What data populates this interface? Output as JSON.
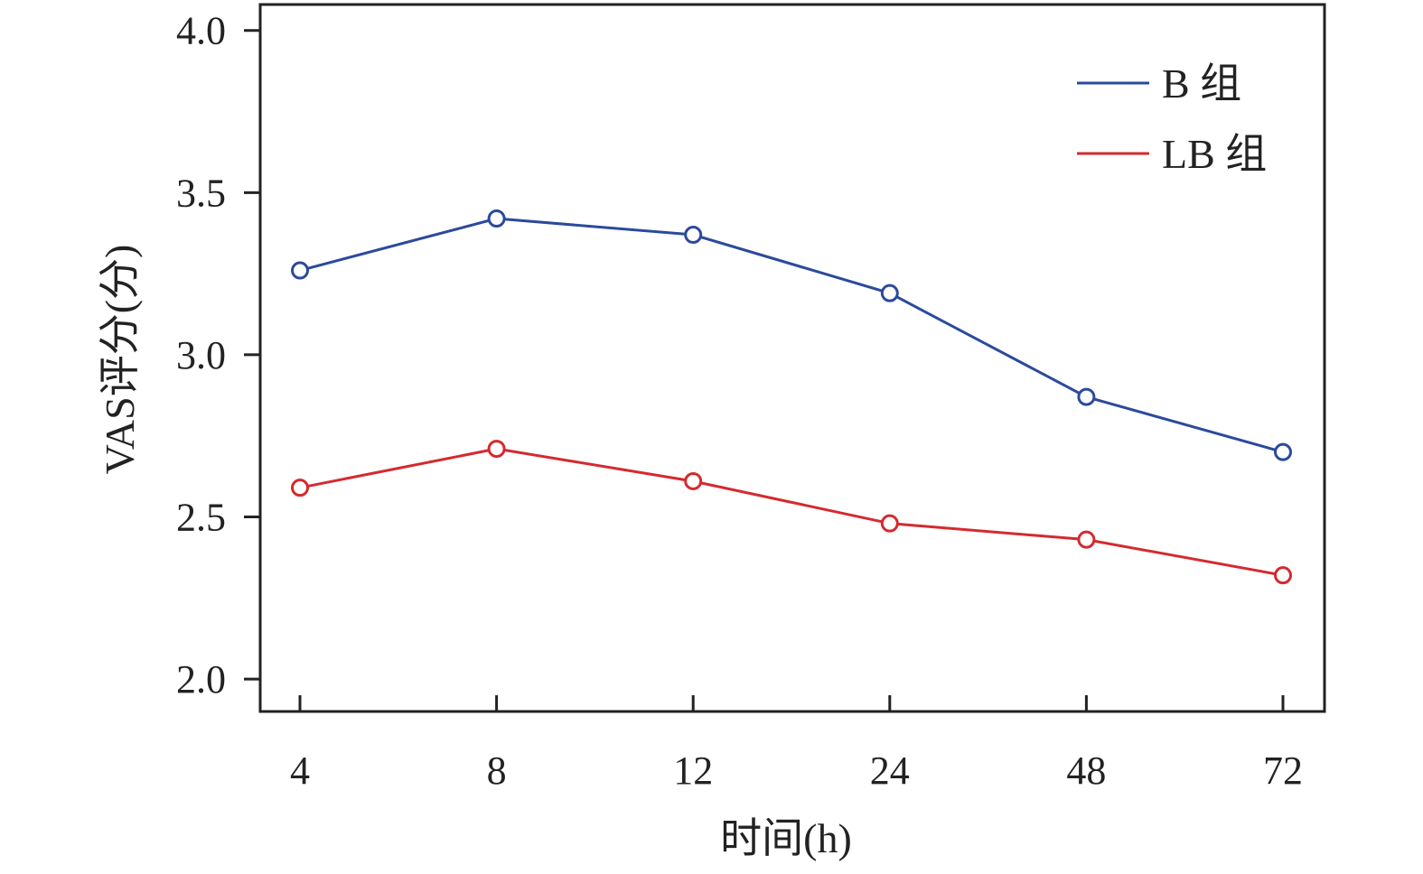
{
  "chart_data": {
    "type": "line",
    "categories": [
      "4",
      "8",
      "12",
      "24",
      "48",
      "72"
    ],
    "xlabel": "时间(h)",
    "ylabel": "VAS评分(分)",
    "ylim": [
      1.9,
      4.08
    ],
    "yticks": [
      2.0,
      2.5,
      3.0,
      3.5,
      4.0
    ],
    "ytick_labels": [
      "2.0",
      "2.5",
      "3.0",
      "3.5",
      "4.0"
    ],
    "series": [
      {
        "name": "B 组",
        "color": "#2b4a9c",
        "values": [
          3.26,
          3.42,
          3.37,
          3.19,
          2.87,
          2.7
        ]
      },
      {
        "name": "LB 组",
        "color": "#d42a2f",
        "values": [
          2.59,
          2.71,
          2.61,
          2.48,
          2.43,
          2.32
        ]
      }
    ],
    "legend_position": "top-right",
    "markers": "open-circle",
    "grid": false
  }
}
